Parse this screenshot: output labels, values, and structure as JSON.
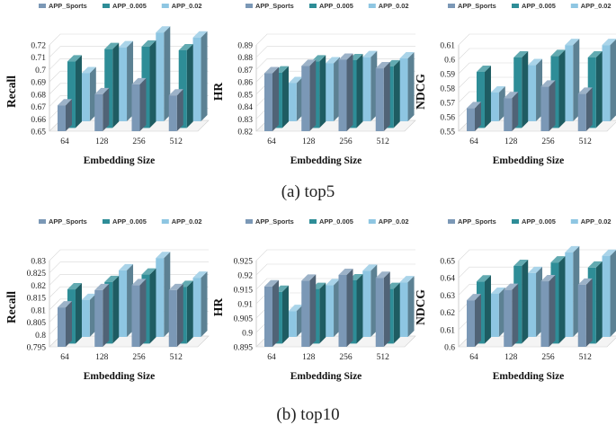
{
  "captions": {
    "top5": "(a) top5",
    "top10": "(b) top10"
  },
  "colors": {
    "APP_Sports": "#7b98b6",
    "APP_0.005": "#2e8d97",
    "APP_0.02": "#8ec6e2"
  },
  "chart_data": [
    {
      "type": "bar",
      "group": "top5",
      "legend": [
        "APP_Sports",
        "APP_0.005",
        "APP_0.02"
      ],
      "categories": [
        "64",
        "128",
        "256",
        "512"
      ],
      "xlabel": "Embedding Size",
      "ylabel": "Recall",
      "ylim": [
        0.65,
        0.72
      ],
      "yticks": [
        "0.65",
        "0.66",
        "0.67",
        "0.68",
        "0.69",
        "0.7",
        "0.71",
        "0.72"
      ],
      "series": [
        {
          "name": "APP_Sports",
          "values": [
            0.671,
            0.68,
            0.688,
            0.679
          ]
        },
        {
          "name": "APP_0.005",
          "values": [
            0.704,
            0.714,
            0.716,
            0.713
          ]
        },
        {
          "name": "APP_0.02",
          "values": [
            0.689,
            0.71,
            0.722,
            0.718
          ]
        }
      ]
    },
    {
      "type": "bar",
      "group": "top5",
      "legend": [
        "APP_Sports",
        "APP_0.005",
        "APP_0.02"
      ],
      "categories": [
        "64",
        "128",
        "256",
        "512"
      ],
      "xlabel": "Embedding Size",
      "ylabel": "HR",
      "ylim": [
        0.82,
        0.89
      ],
      "yticks": [
        "0.82",
        "0.83",
        "0.84",
        "0.85",
        "0.86",
        "0.87",
        "0.88",
        "0.89"
      ],
      "series": [
        {
          "name": "APP_Sports",
          "values": [
            0.867,
            0.873,
            0.878,
            0.871
          ]
        },
        {
          "name": "APP_0.005",
          "values": [
            0.865,
            0.874,
            0.875,
            0.87
          ]
        },
        {
          "name": "APP_0.02",
          "values": [
            0.851,
            0.867,
            0.872,
            0.871
          ]
        }
      ]
    },
    {
      "type": "bar",
      "group": "top5",
      "legend": [
        "APP_Sports",
        "APP_0.005",
        "APP_0.02"
      ],
      "categories": [
        "64",
        "128",
        "256",
        "512"
      ],
      "xlabel": "Embedding Size",
      "ylabel": "NDCG",
      "ylim": [
        0.55,
        0.61
      ],
      "yticks": [
        "0.55",
        "0.56",
        "0.57",
        "0.58",
        "0.59",
        "0.6",
        "0.61"
      ],
      "series": [
        {
          "name": "APP_Sports",
          "values": [
            0.566,
            0.573,
            0.581,
            0.576
          ]
        },
        {
          "name": "APP_0.005",
          "values": [
            0.589,
            0.599,
            0.6,
            0.599
          ]
        },
        {
          "name": "APP_0.02",
          "values": [
            0.57,
            0.589,
            0.603,
            0.603
          ]
        }
      ]
    },
    {
      "type": "bar",
      "group": "top10",
      "legend": [
        "APP_Sports",
        "APP_0.005",
        "APP_0.02"
      ],
      "categories": [
        "64",
        "128",
        "256",
        "512"
      ],
      "xlabel": "Embedding Size",
      "ylabel": "Recall",
      "ylim": [
        0.795,
        0.83
      ],
      "yticks": [
        "0.795",
        "0.8",
        "0.805",
        "0.81",
        "0.815",
        "0.82",
        "0.825",
        "0.83"
      ],
      "series": [
        {
          "name": "APP_Sports",
          "values": [
            0.811,
            0.818,
            0.82,
            0.818
          ]
        },
        {
          "name": "APP_0.005",
          "values": [
            0.817,
            0.82,
            0.823,
            0.818
          ]
        },
        {
          "name": "APP_0.02",
          "values": [
            0.81,
            0.822,
            0.827,
            0.819
          ]
        }
      ]
    },
    {
      "type": "bar",
      "group": "top10",
      "legend": [
        "APP_Sports",
        "APP_0.005",
        "APP_0.02"
      ],
      "categories": [
        "64",
        "128",
        "256",
        "512"
      ],
      "xlabel": "Embedding Size",
      "ylabel": "HR",
      "ylim": [
        0.895,
        0.925
      ],
      "yticks": [
        "0.895",
        "0.9",
        "0.905",
        "0.91",
        "0.915",
        "0.92",
        "0.925"
      ],
      "series": [
        {
          "name": "APP_Sports",
          "values": [
            0.916,
            0.918,
            0.92,
            0.919
          ]
        },
        {
          "name": "APP_0.005",
          "values": [
            0.913,
            0.914,
            0.917,
            0.914
          ]
        },
        {
          "name": "APP_0.02",
          "values": [
            0.904,
            0.913,
            0.918,
            0.914
          ]
        }
      ]
    },
    {
      "type": "bar",
      "group": "top10",
      "legend": [
        "APP_Sports",
        "APP_0.005",
        "APP_0.02"
      ],
      "categories": [
        "64",
        "128",
        "256",
        "512"
      ],
      "xlabel": "Embedding Size",
      "ylabel": "NDCG",
      "ylim": [
        0.6,
        0.65
      ],
      "yticks": [
        "0.6",
        "0.61",
        "0.62",
        "0.63",
        "0.64",
        "0.65"
      ],
      "series": [
        {
          "name": "APP_Sports",
          "values": [
            0.627,
            0.633,
            0.638,
            0.636
          ]
        },
        {
          "name": "APP_0.005",
          "values": [
            0.636,
            0.645,
            0.647,
            0.644
          ]
        },
        {
          "name": "APP_0.02",
          "values": [
            0.625,
            0.637,
            0.649,
            0.647
          ]
        }
      ]
    }
  ]
}
